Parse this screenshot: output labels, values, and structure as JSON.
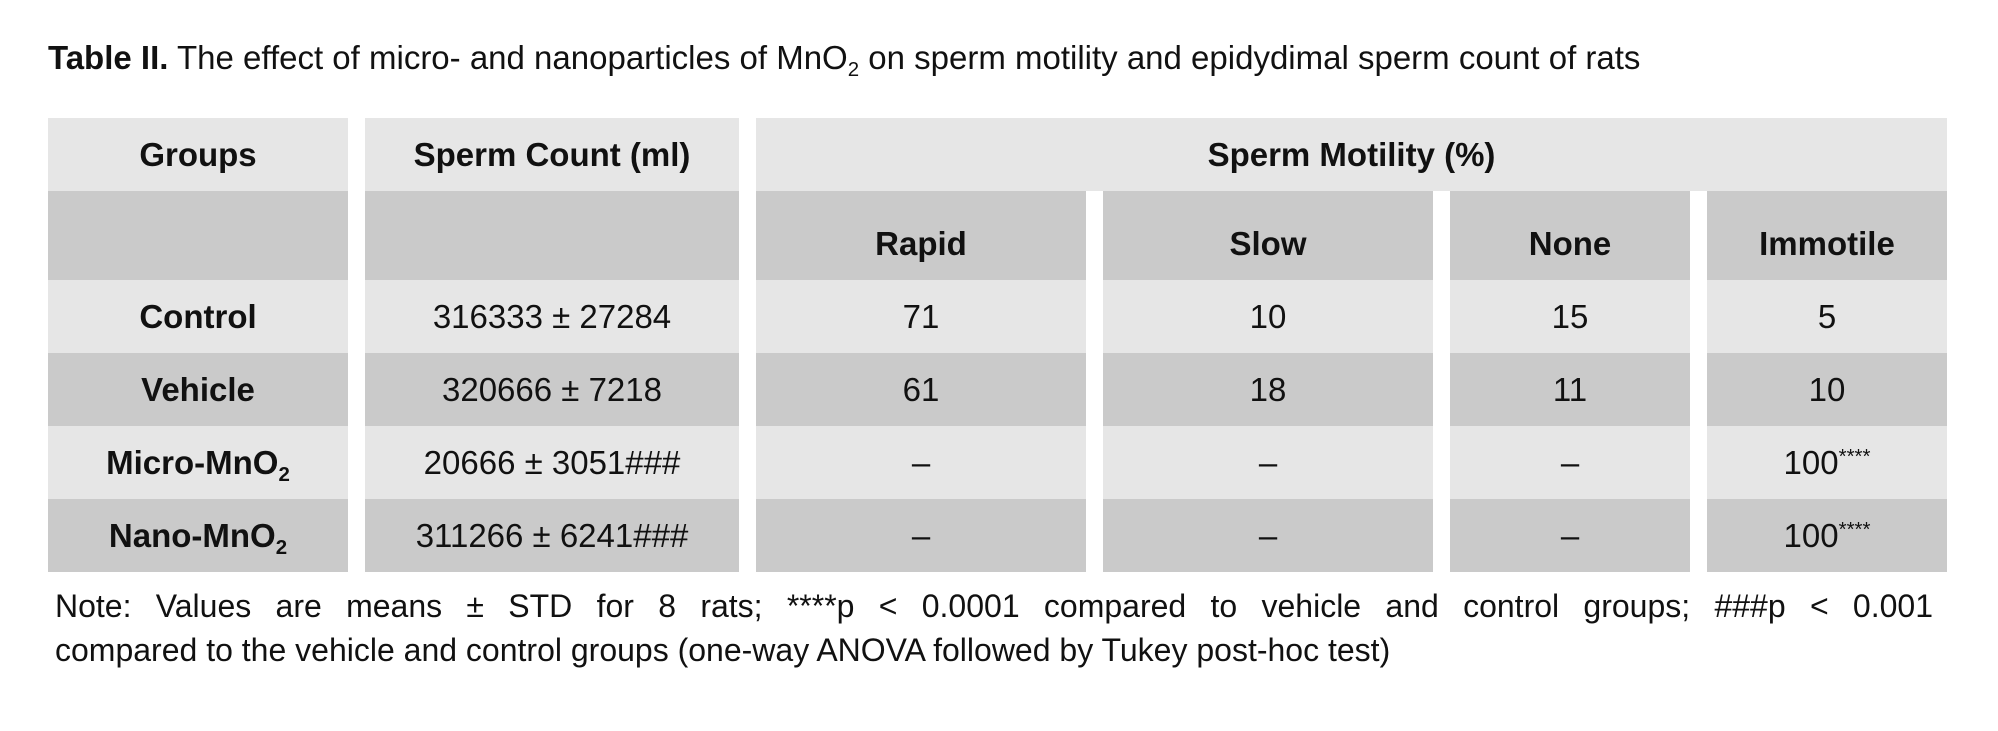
{
  "caption": {
    "label": "Table II.",
    "text_before": " The effect of micro- and nanoparticles of MnO",
    "subscript": "2",
    "text_after": " on sperm motility and epidydimal sperm count of rats"
  },
  "table": {
    "header": {
      "groups": "Groups",
      "sperm_count": "Sperm Count (ml)",
      "sperm_motility": "Sperm Motility (%)",
      "motility_columns": [
        "Rapid",
        "Slow",
        "None",
        "Immotile"
      ]
    },
    "rows": [
      {
        "group": "Control",
        "group_sub": "",
        "count": "316333 ± 27284",
        "rapid": "71",
        "slow": "10",
        "none": "15",
        "immotile": "5",
        "immotile_sup": ""
      },
      {
        "group": "Vehicle",
        "group_sub": "",
        "count": "320666 ± 7218",
        "rapid": "61",
        "slow": "18",
        "none": "11",
        "immotile": "10",
        "immotile_sup": ""
      },
      {
        "group": "Micro-MnO",
        "group_sub": "2",
        "count": "20666 ± 3051###",
        "rapid": "–",
        "slow": "–",
        "none": "–",
        "immotile": "100",
        "immotile_sup": "****"
      },
      {
        "group": "Nano-MnO",
        "group_sub": "2",
        "count": "311266 ± 6241###",
        "rapid": "–",
        "slow": "–",
        "none": "–",
        "immotile": "100",
        "immotile_sup": "****"
      }
    ]
  },
  "note": {
    "line1": "Note: Values are means ± STD for 8 rats; ****p < 0.0001 compared to vehicle and control groups; ###p < 0.001",
    "line2": "compared to the vehicle and control groups (one-way ANOVA followed by Tukey post-hoc test)"
  }
}
